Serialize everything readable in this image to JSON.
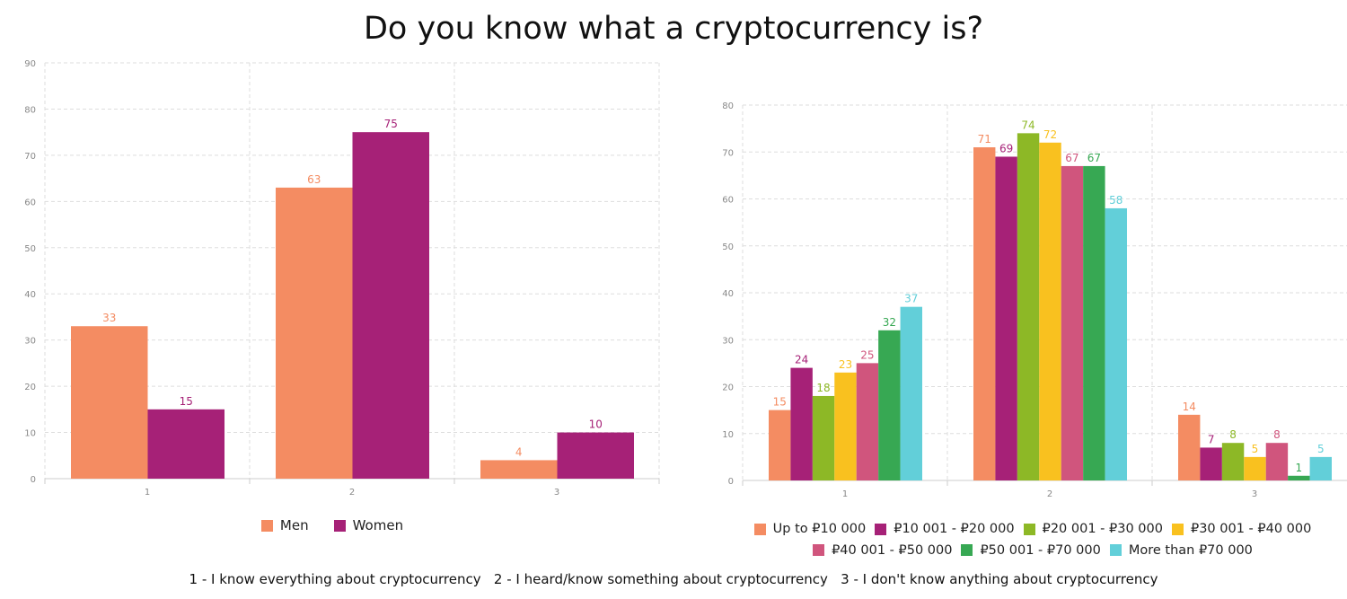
{
  "title": "Do you know what a cryptocurrency is?",
  "footnote": "1 - I know everything about cryptocurrency   2 - I heard/know something about cryptocurrency   3 - I don't know anything about cryptocurrency",
  "chart_data": [
    {
      "type": "bar",
      "categories": [
        "1",
        "2",
        "3"
      ],
      "ylim": [
        0,
        90
      ],
      "yticks": [
        0,
        10,
        20,
        30,
        40,
        50,
        60,
        70,
        80,
        90
      ],
      "grid": true,
      "legend_position": "bottom",
      "series": [
        {
          "name": "Men",
          "color": "#F48C62",
          "values": [
            33,
            63,
            4
          ]
        },
        {
          "name": "Women",
          "color": "#A62177",
          "values": [
            15,
            75,
            10
          ]
        }
      ]
    },
    {
      "type": "bar",
      "categories": [
        "1",
        "2",
        "3"
      ],
      "ylim": [
        0,
        80
      ],
      "yticks": [
        0,
        10,
        20,
        30,
        40,
        50,
        60,
        70,
        80
      ],
      "grid": true,
      "legend_position": "bottom",
      "series": [
        {
          "name": "Up to ₽10 000",
          "color": "#F48C62",
          "values": [
            15,
            71,
            14
          ]
        },
        {
          "name": "₽10 001 - ₽20 000",
          "color": "#A62177",
          "values": [
            24,
            69,
            7
          ]
        },
        {
          "name": "₽20 001 - ₽30 000",
          "color": "#8DB826",
          "values": [
            18,
            74,
            8
          ]
        },
        {
          "name": "₽30 001 - ₽40 000",
          "color": "#F9C11F",
          "values": [
            23,
            72,
            5
          ]
        },
        {
          "name": "₽40 001 - ₽50 000",
          "color": "#D0557D",
          "values": [
            25,
            67,
            8
          ]
        },
        {
          "name": "₽50 001 - ₽70 000",
          "color": "#37A853",
          "values": [
            32,
            67,
            1
          ]
        },
        {
          "name": "More than ₽70 000",
          "color": "#62CFD9",
          "values": [
            37,
            58,
            5
          ]
        }
      ]
    }
  ]
}
